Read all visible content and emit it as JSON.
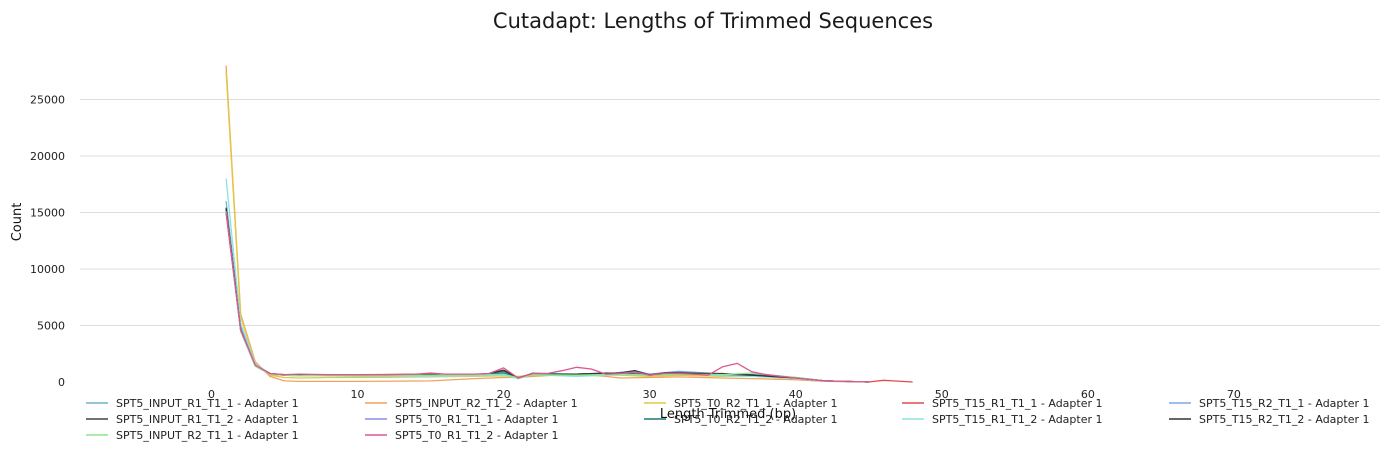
{
  "chart_data": {
    "type": "line",
    "title": "Cutadapt: Lengths of Trimmed Sequences",
    "xlabel": "Length Trimmed (bp)",
    "ylabel": "Count",
    "xlim": [
      -9,
      80
    ],
    "ylim": [
      0,
      28500
    ],
    "xticks": [
      0,
      10,
      20,
      30,
      40,
      50,
      60,
      70
    ],
    "yticks": [
      0,
      5000,
      10000,
      15000,
      20000,
      25000
    ],
    "grid": "horizontal",
    "legend_position": "bottom",
    "series": [
      {
        "name": "SPT5_INPUT_R1_T1_1 - Adapter 1",
        "color": "#6fb1d0",
        "x": [
          1,
          2,
          3,
          4,
          5,
          6,
          8,
          10,
          12,
          15,
          18,
          19,
          20,
          21,
          22,
          23,
          25,
          27,
          29,
          30,
          32,
          35,
          37,
          40,
          42,
          45
        ],
        "y": [
          16000,
          5000,
          1600,
          700,
          600,
          550,
          600,
          550,
          550,
          600,
          600,
          650,
          900,
          350,
          750,
          600,
          650,
          700,
          800,
          600,
          900,
          700,
          600,
          350,
          100,
          0
        ]
      },
      {
        "name": "SPT5_INPUT_R2_T1_2 - Adapter 1",
        "color": "#f0a35a",
        "x": [
          1,
          2,
          3,
          4,
          5,
          6,
          8,
          10,
          15,
          18,
          20,
          21,
          22,
          25,
          27,
          28,
          30,
          32,
          35,
          37,
          40,
          42,
          45
        ],
        "y": [
          28000,
          6000,
          1800,
          500,
          100,
          50,
          50,
          50,
          100,
          300,
          400,
          400,
          500,
          700,
          500,
          350,
          400,
          450,
          350,
          300,
          200,
          50,
          0
        ]
      },
      {
        "name": "SPT5_T0_R2_T1_1 - Adapter 1",
        "color": "#e0c840",
        "x": [
          1,
          2,
          3,
          4,
          5,
          6,
          8,
          10,
          15,
          18,
          20,
          21,
          22,
          25,
          28,
          30,
          32,
          35,
          37,
          40,
          42,
          45
        ],
        "y": [
          27500,
          5800,
          1700,
          600,
          400,
          350,
          400,
          400,
          450,
          500,
          550,
          500,
          600,
          650,
          600,
          500,
          600,
          500,
          550,
          400,
          100,
          0
        ]
      },
      {
        "name": "SPT5_T15_R1_T1_1 - Adapter 1",
        "color": "#e34a4a",
        "x": [
          1,
          2,
          3,
          4,
          5,
          6,
          8,
          10,
          15,
          18,
          20,
          21,
          22,
          25,
          28,
          30,
          32,
          35,
          37,
          40,
          42,
          45,
          46,
          48
        ],
        "y": [
          15000,
          4600,
          1500,
          750,
          650,
          600,
          650,
          650,
          700,
          650,
          750,
          400,
          650,
          700,
          750,
          700,
          750,
          650,
          600,
          350,
          100,
          0,
          150,
          0
        ]
      },
      {
        "name": "SPT5_T15_R2_T1_1 - Adapter 1",
        "color": "#7aa9e8",
        "x": [
          1,
          2,
          3,
          4,
          5,
          6,
          8,
          10,
          15,
          18,
          20,
          21,
          22,
          25,
          27,
          29,
          30,
          32,
          35,
          37,
          40,
          42,
          45
        ],
        "y": [
          15500,
          4700,
          1500,
          750,
          650,
          600,
          650,
          600,
          600,
          650,
          800,
          300,
          800,
          650,
          700,
          1000,
          700,
          950,
          700,
          600,
          350,
          100,
          0
        ]
      },
      {
        "name": "SPT5_INPUT_R1_T1_2 - Adapter 1",
        "color": "#444444",
        "x": [
          1,
          2,
          3,
          4,
          5,
          6,
          8,
          10,
          15,
          18,
          19,
          20,
          21,
          22,
          23,
          25,
          27,
          28,
          29,
          30,
          31,
          32,
          35,
          37,
          40,
          42,
          45
        ],
        "y": [
          15200,
          4600,
          1450,
          750,
          600,
          600,
          600,
          600,
          650,
          650,
          750,
          1000,
          350,
          750,
          650,
          700,
          800,
          750,
          1000,
          600,
          800,
          800,
          750,
          600,
          350,
          100,
          0
        ]
      },
      {
        "name": "SPT5_T0_R1_T1_1 - Adapter 1",
        "color": "#8b8be8",
        "x": [
          1,
          2,
          3,
          4,
          5,
          6,
          8,
          10,
          15,
          18,
          20,
          21,
          22,
          25,
          28,
          30,
          32,
          35,
          37,
          40,
          42,
          45
        ],
        "y": [
          15000,
          4500,
          1400,
          700,
          600,
          600,
          600,
          600,
          650,
          650,
          750,
          400,
          700,
          700,
          800,
          700,
          800,
          700,
          600,
          350,
          100,
          0
        ]
      },
      {
        "name": "SPT5_T0_R2_T1_2 - Adapter 1",
        "color": "#1a7a7a",
        "x": [
          1,
          2,
          3,
          4,
          5,
          6,
          8,
          10,
          15,
          18,
          20,
          21,
          22,
          25,
          28,
          30,
          32,
          35,
          37,
          40,
          42,
          45
        ],
        "y": [
          15300,
          4550,
          1450,
          750,
          600,
          600,
          650,
          600,
          650,
          650,
          800,
          350,
          750,
          700,
          800,
          650,
          800,
          700,
          650,
          400,
          100,
          0
        ]
      },
      {
        "name": "SPT5_T15_R1_T1_2 - Adapter 1",
        "color": "#8fe0e0",
        "x": [
          1,
          2,
          3,
          4,
          5,
          6,
          8,
          10,
          15,
          18,
          20,
          21,
          22,
          25,
          28,
          30,
          32,
          35,
          37,
          40,
          42,
          45
        ],
        "y": [
          18000,
          5200,
          1600,
          750,
          600,
          550,
          550,
          500,
          500,
          550,
          600,
          300,
          650,
          500,
          650,
          600,
          750,
          550,
          500,
          300,
          80,
          0
        ]
      },
      {
        "name": "SPT5_T15_R2_T1_2 - Adapter 1",
        "color": "#333333",
        "x": [
          1,
          2,
          3,
          4,
          5,
          6,
          8,
          10,
          15,
          18,
          19,
          20,
          21,
          22,
          23,
          25,
          28,
          29,
          30,
          31,
          32,
          35,
          37,
          40,
          42,
          45
        ],
        "y": [
          15400,
          4600,
          1450,
          750,
          600,
          600,
          650,
          600,
          650,
          650,
          750,
          1050,
          350,
          750,
          650,
          700,
          800,
          1000,
          600,
          800,
          800,
          700,
          600,
          350,
          100,
          0
        ]
      },
      {
        "name": "SPT5_INPUT_R2_T1_1 - Adapter 1",
        "color": "#8be68b",
        "x": [
          1,
          2,
          3,
          4,
          5,
          6,
          8,
          10,
          15,
          18,
          20,
          21,
          22,
          25,
          28,
          30,
          32,
          35,
          37,
          40,
          42,
          45
        ],
        "y": [
          15100,
          4500,
          1400,
          700,
          600,
          550,
          600,
          550,
          600,
          600,
          700,
          350,
          650,
          600,
          700,
          600,
          700,
          650,
          800,
          400,
          100,
          0
        ]
      },
      {
        "name": "SPT5_T0_R1_T1_2 - Adapter 1",
        "color": "#e05590",
        "x": [
          1,
          2,
          3,
          4,
          5,
          6,
          8,
          10,
          12,
          14,
          15,
          16,
          18,
          19,
          20,
          21,
          22,
          23,
          24,
          25,
          26,
          27,
          28,
          29,
          30,
          31,
          32,
          33,
          34,
          35,
          36,
          37,
          38,
          40,
          42,
          45
        ],
        "y": [
          15000,
          4600,
          1500,
          750,
          650,
          700,
          650,
          650,
          650,
          700,
          800,
          700,
          700,
          750,
          1250,
          350,
          750,
          750,
          1000,
          1300,
          1150,
          700,
          750,
          900,
          600,
          750,
          750,
          700,
          600,
          1350,
          1650,
          900,
          650,
          350,
          100,
          0
        ]
      }
    ]
  }
}
